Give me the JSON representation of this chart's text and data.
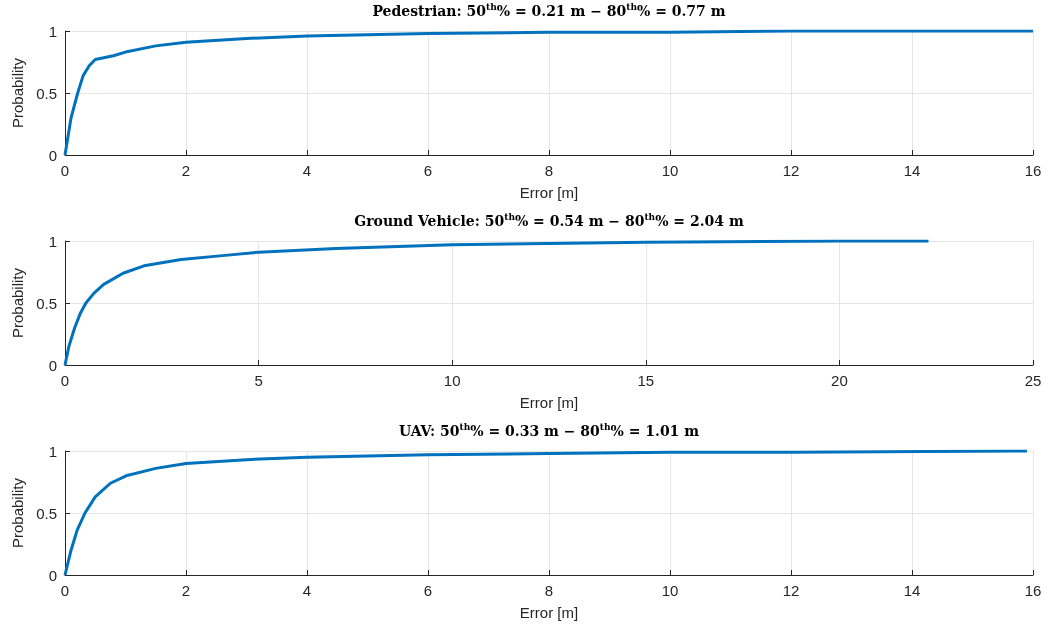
{
  "chart_data": [
    {
      "type": "line",
      "title": "Pedestrian: 50$^{th}$% = 0.21 m − 80$^{th}$% = 0.77 m",
      "xlabel": "Error [m]",
      "ylabel": "Probability",
      "grid": true,
      "xlim": [
        0,
        16
      ],
      "xticks": [
        0,
        2,
        4,
        6,
        8,
        10,
        12,
        14,
        16
      ],
      "ylim": [
        0,
        1
      ],
      "yticks": [
        0,
        0.5,
        1
      ],
      "series": [
        {
          "color": "#0072bd",
          "x": [
            0,
            0.05,
            0.1,
            0.21,
            0.3,
            0.4,
            0.5,
            0.6,
            0.8,
            1,
            1.5,
            2,
            3,
            4,
            6,
            8,
            10,
            12,
            16
          ],
          "values": [
            0,
            0.15,
            0.3,
            0.5,
            0.64,
            0.72,
            0.77,
            0.78,
            0.8,
            0.83,
            0.88,
            0.91,
            0.94,
            0.96,
            0.98,
            0.99,
            0.99,
            1,
            1
          ]
        }
      ]
    },
    {
      "type": "line",
      "title": "Ground Vehicle: 50$^{th}$% = 0.54 m − 80$^{th}$% = 2.04 m",
      "xlabel": "Error [m]",
      "ylabel": "Probability",
      "grid": true,
      "xlim": [
        0,
        25
      ],
      "xticks": [
        0,
        5,
        10,
        15,
        20,
        25
      ],
      "ylim": [
        0,
        1
      ],
      "yticks": [
        0,
        0.5,
        1
      ],
      "series": [
        {
          "color": "#0072bd",
          "x": [
            0,
            0.1,
            0.25,
            0.4,
            0.54,
            0.75,
            1,
            1.5,
            2.04,
            3,
            4,
            5,
            7,
            10,
            15,
            20,
            22.3
          ],
          "values": [
            0,
            0.15,
            0.3,
            0.42,
            0.5,
            0.58,
            0.65,
            0.74,
            0.8,
            0.85,
            0.88,
            0.91,
            0.94,
            0.97,
            0.99,
            1,
            1
          ]
        }
      ]
    },
    {
      "type": "line",
      "title": "UAV: 50$^{th}$% = 0.33 m − 80$^{th}$% = 1.01 m",
      "xlabel": "Error [m]",
      "ylabel": "Probability",
      "grid": true,
      "xlim": [
        0,
        16
      ],
      "xticks": [
        0,
        2,
        4,
        6,
        8,
        10,
        12,
        14,
        16
      ],
      "ylim": [
        0,
        1
      ],
      "yticks": [
        0,
        0.5,
        1
      ],
      "series": [
        {
          "color": "#0072bd",
          "x": [
            0,
            0.1,
            0.2,
            0.33,
            0.5,
            0.75,
            1.01,
            1.5,
            2,
            3,
            4,
            6,
            8,
            10,
            12,
            15.9
          ],
          "values": [
            0,
            0.2,
            0.36,
            0.5,
            0.63,
            0.74,
            0.8,
            0.86,
            0.9,
            0.93,
            0.95,
            0.97,
            0.98,
            0.99,
            0.99,
            1
          ]
        }
      ]
    }
  ]
}
